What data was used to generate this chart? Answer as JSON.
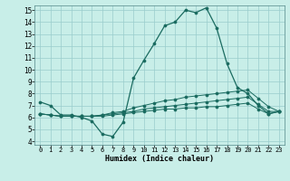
{
  "xlabel": "Humidex (Indice chaleur)",
  "bg_color": "#c8eee8",
  "grid_color": "#99cccc",
  "line_color": "#1a6b60",
  "xlim": [
    -0.5,
    23.5
  ],
  "ylim": [
    3.7,
    15.4
  ],
  "yticks": [
    4,
    5,
    6,
    7,
    8,
    9,
    10,
    11,
    12,
    13,
    14,
    15
  ],
  "xticks": [
    0,
    1,
    2,
    3,
    4,
    5,
    6,
    7,
    8,
    9,
    10,
    11,
    12,
    13,
    14,
    15,
    16,
    17,
    18,
    19,
    20,
    21,
    22,
    23
  ],
  "line1_x": [
    0,
    1,
    2,
    3,
    4,
    5,
    6,
    7,
    8,
    9,
    10,
    11,
    12,
    13,
    14,
    15,
    16,
    17,
    18,
    19,
    20,
    21,
    22,
    23
  ],
  "line1_y": [
    7.3,
    7.0,
    6.2,
    6.2,
    6.0,
    5.7,
    4.6,
    4.4,
    5.6,
    9.3,
    10.8,
    12.2,
    13.7,
    14.0,
    15.0,
    14.8,
    15.2,
    13.5,
    10.5,
    8.5,
    8.0,
    7.0,
    6.3,
    6.5
  ],
  "line2_x": [
    0,
    1,
    2,
    3,
    4,
    5,
    6,
    7,
    8,
    9,
    10,
    11,
    12,
    13,
    14,
    15,
    16,
    17,
    18,
    19,
    20,
    21,
    22,
    23
  ],
  "line2_y": [
    6.3,
    6.2,
    6.1,
    6.1,
    6.1,
    6.1,
    6.1,
    6.2,
    6.3,
    6.4,
    6.5,
    6.6,
    6.7,
    6.7,
    6.8,
    6.8,
    6.9,
    6.9,
    7.0,
    7.1,
    7.2,
    6.7,
    6.3,
    6.5
  ],
  "line3_x": [
    0,
    1,
    2,
    3,
    4,
    5,
    6,
    7,
    8,
    9,
    10,
    11,
    12,
    13,
    14,
    15,
    16,
    17,
    18,
    19,
    20,
    21,
    22,
    23
  ],
  "line3_y": [
    6.3,
    6.2,
    6.1,
    6.1,
    6.1,
    6.1,
    6.2,
    6.3,
    6.4,
    6.5,
    6.7,
    6.8,
    6.9,
    7.0,
    7.1,
    7.2,
    7.3,
    7.4,
    7.5,
    7.6,
    7.7,
    7.1,
    6.5,
    6.5
  ],
  "line4_x": [
    0,
    1,
    2,
    3,
    4,
    5,
    6,
    7,
    8,
    9,
    10,
    11,
    12,
    13,
    14,
    15,
    16,
    17,
    18,
    19,
    20,
    21,
    22,
    23
  ],
  "line4_y": [
    6.3,
    6.2,
    6.1,
    6.1,
    6.1,
    6.1,
    6.2,
    6.4,
    6.5,
    6.8,
    7.0,
    7.2,
    7.4,
    7.5,
    7.7,
    7.8,
    7.9,
    8.0,
    8.1,
    8.2,
    8.3,
    7.6,
    6.9,
    6.5
  ]
}
